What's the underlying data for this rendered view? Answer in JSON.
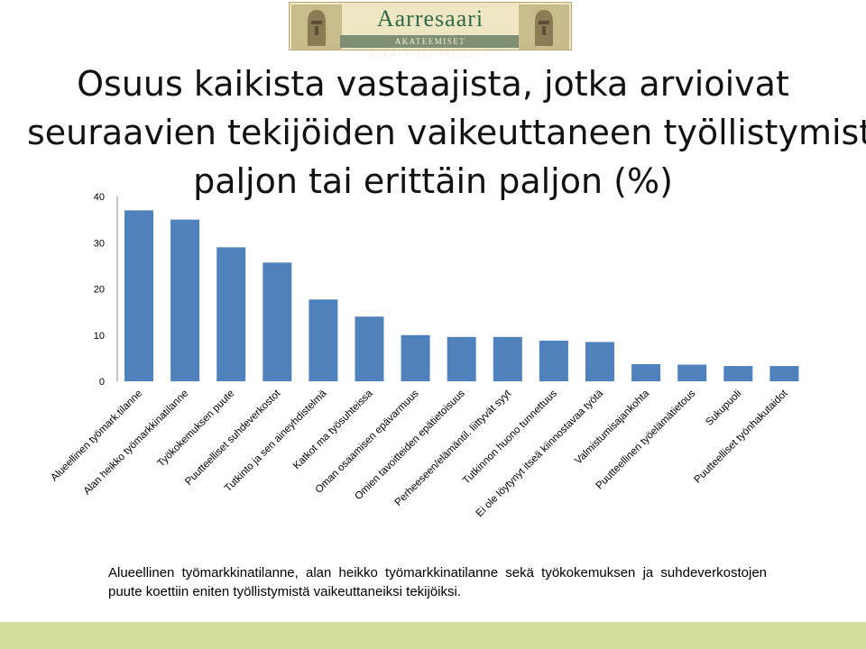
{
  "logo": {
    "name": "Aarresaari",
    "tagline": "AKATEEMISET REKRYTOINTIPALVELUT"
  },
  "title": {
    "line1": "Osuus kaikista vastaajista, jotka arvioivat",
    "line2": "seuraavien tekijöiden vaikeuttaneen työllistymistä",
    "line3": "paljon tai erittäin paljon (%)"
  },
  "chart_data": {
    "type": "bar",
    "categories": [
      "Alueellinen työmark.tilanne",
      "Alan heikko työmarkkinatilanne",
      "Työkokemuksen puute",
      "Puutteelliset suhdeverkostot",
      "Tutkinto ja sen aineyhdistelmä",
      "Katkot ma työsuhteissa",
      "Oman osaamisen epävarmuus",
      "Omien tavoitteiden epätietoisuus",
      "Perheeseen/elämäntil. liittyvät syyt",
      "Tutkinnon huono tunnettuus",
      "Ei ole löytynyt itseä kiinnostavaa työtä",
      "Valmistumisajankohta",
      "Puutteellinen työelämätietous",
      "Sukupuoli",
      "Puutteelliset työnhakutaidot"
    ],
    "values": [
      37,
      35,
      29,
      25.7,
      17.7,
      14,
      10,
      9.6,
      9.6,
      8.8,
      8.5,
      3.7,
      3.6,
      3.3,
      3.3
    ],
    "yticks": [
      0,
      10,
      20,
      30,
      40
    ],
    "ylim": [
      0,
      40
    ],
    "grid": false,
    "bar_color": "#4f81bd"
  },
  "caption": "Alueellinen työmarkkinatilanne, alan heikko työmarkkinatilanne sekä työkokemuksen ja suhdeverkostojen puute koettiin eniten työllistymistä vaikeuttaneiksi tekijöiksi.",
  "colors": {
    "footer": "#d3de9c",
    "bar": "#4f81bd"
  }
}
